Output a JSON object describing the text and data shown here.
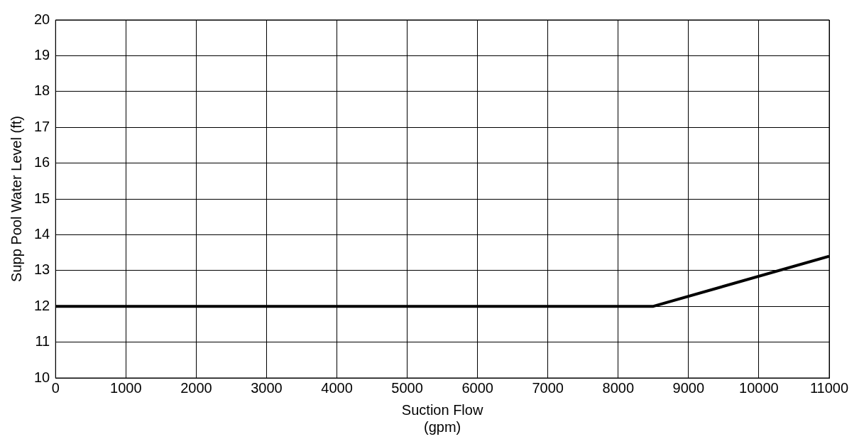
{
  "chart_data": {
    "type": "line",
    "xlabel": "Suction Flow\n(gpm)",
    "ylabel": "Supp Pool Water Level (ft)",
    "x": [
      0,
      8500,
      11000
    ],
    "series": [
      {
        "color": "#000000",
        "values": [
          12,
          12,
          13.4
        ]
      }
    ],
    "xlim": [
      0,
      11000
    ],
    "xticks": [
      0,
      1000,
      2000,
      3000,
      4000,
      5000,
      6000,
      7000,
      8000,
      9000,
      10000,
      11000
    ],
    "ylim": [
      10,
      20
    ],
    "yticks": [
      10,
      11,
      12,
      13,
      14,
      15,
      16,
      17,
      18,
      19,
      20
    ],
    "grid": true,
    "legend": false,
    "marker": "none",
    "line_style": "solid"
  }
}
